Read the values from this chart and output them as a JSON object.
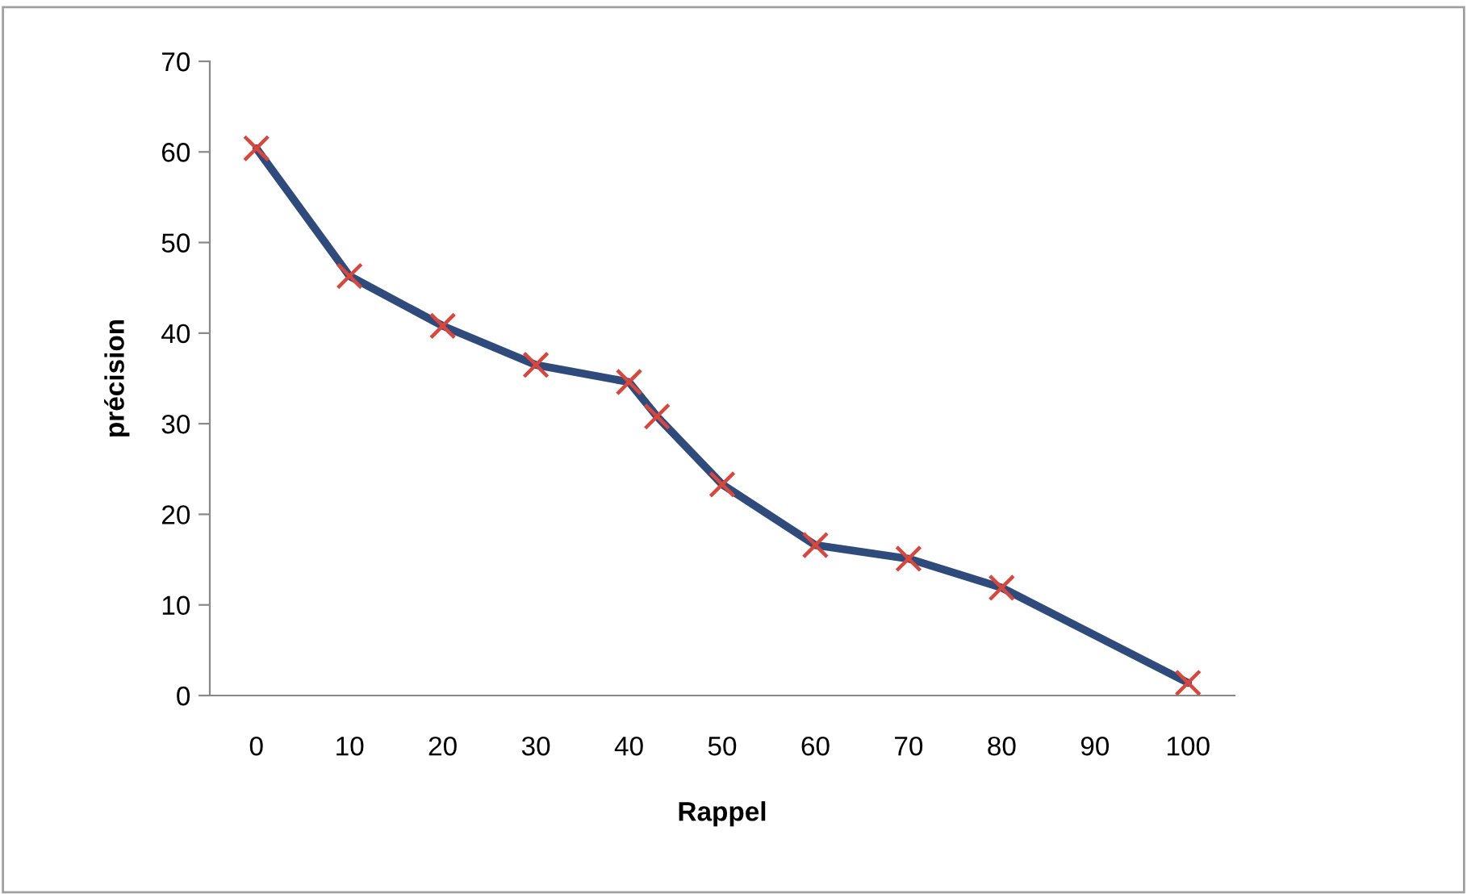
{
  "chart_data": {
    "type": "line",
    "xlabel": "Rappel",
    "ylabel": "précision",
    "x": [
      0,
      10,
      20,
      30,
      40,
      43,
      50,
      60,
      70,
      80,
      100
    ],
    "series": [
      {
        "color": "#2f4b7c",
        "marker": "none",
        "values": [
          60.4,
          46.3,
          40.8,
          36.5,
          34.6,
          30.8,
          23.3,
          16.6,
          15.1,
          11.9,
          1.4
        ]
      },
      {
        "type": "scatter",
        "color": "#d9473c",
        "marker": "cross",
        "values": [
          60.4,
          46.3,
          40.8,
          36.5,
          34.6,
          30.8,
          23.3,
          16.6,
          15.1,
          11.9,
          1.4
        ]
      }
    ],
    "xlim": [
      -5,
      105
    ],
    "xticks": [
      0,
      10,
      20,
      30,
      40,
      50,
      60,
      70,
      80,
      90,
      100
    ],
    "ylim": [
      0,
      70
    ],
    "yticks": [
      0,
      10,
      20,
      30,
      40,
      50,
      60,
      70
    ],
    "grid": false
  }
}
